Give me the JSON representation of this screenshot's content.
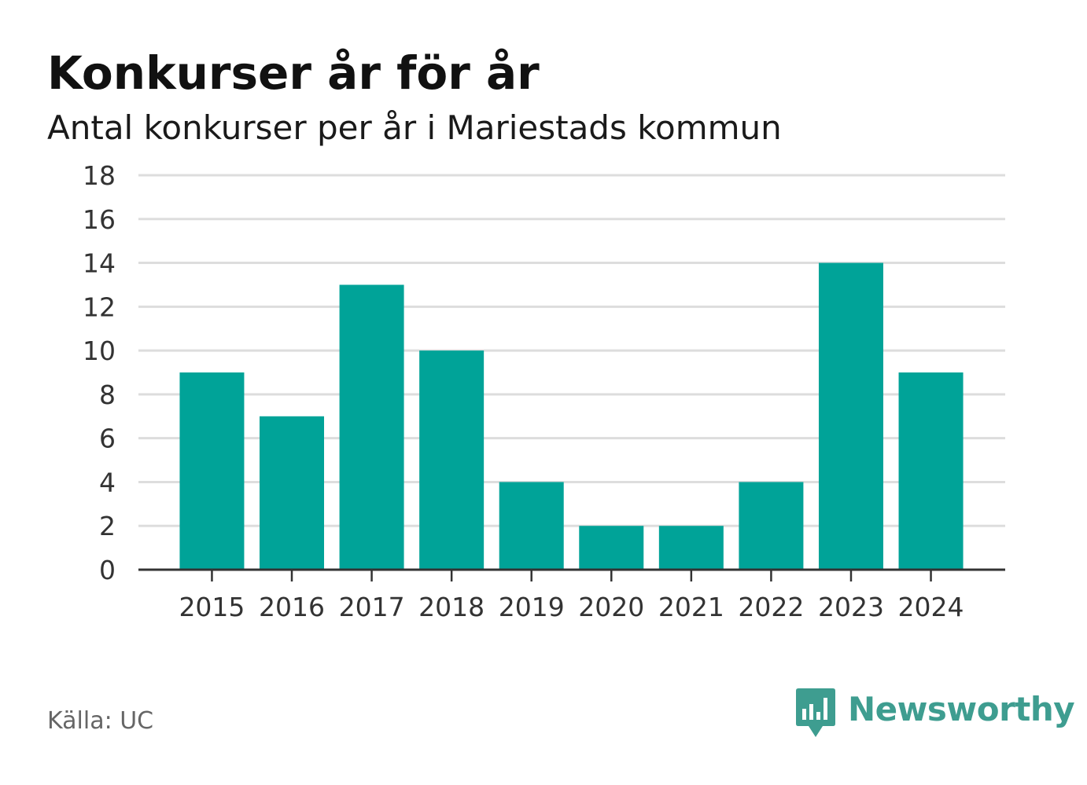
{
  "title": "Konkurser år för år",
  "subtitle": "Antal konkurser per år i Mariestads kommun",
  "source": "Källa: UC",
  "brand": {
    "name": "Newsworthy",
    "icon": "newsworthy-logo-icon",
    "color": "#3e9d90"
  },
  "colors": {
    "bar": "#00a398",
    "grid": "#dddddd",
    "axis": "#333333",
    "tick_text": "#333333"
  },
  "chart_data": {
    "type": "bar",
    "categories": [
      "2015",
      "2016",
      "2017",
      "2018",
      "2019",
      "2020",
      "2021",
      "2022",
      "2023",
      "2024"
    ],
    "values": [
      9,
      7,
      13,
      10,
      4,
      2,
      2,
      4,
      14,
      9
    ],
    "title": "Konkurser år för år",
    "subtitle": "Antal konkurser per år i Mariestads kommun",
    "ylim": [
      0,
      18
    ],
    "yticks": [
      "0",
      "2",
      "4",
      "6",
      "8",
      "10",
      "12",
      "14",
      "16",
      "18"
    ],
    "grid": true,
    "legend": "none"
  }
}
